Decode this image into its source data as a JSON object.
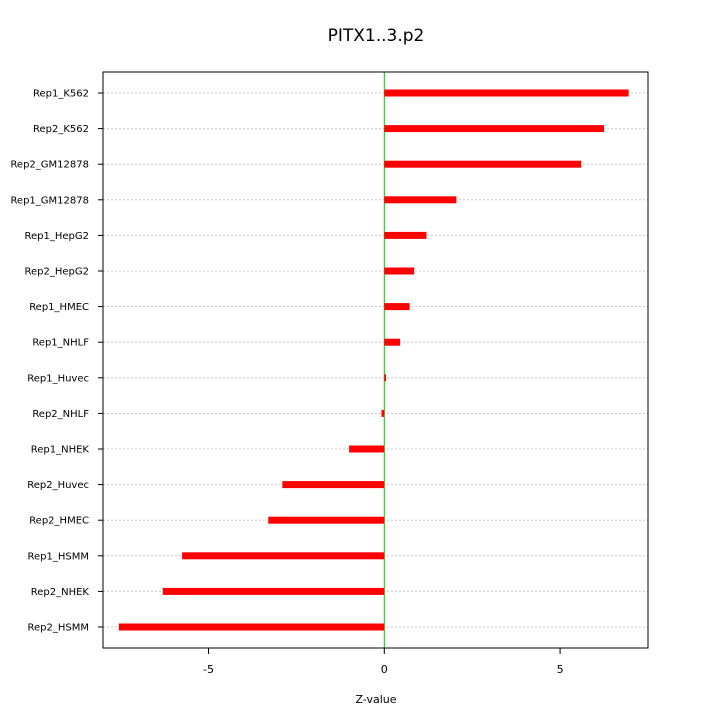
{
  "chart_data": {
    "type": "bar",
    "orientation": "horizontal",
    "title": "PITX1..3.p2",
    "xlabel": "Z-value",
    "ylabel": "",
    "xlim": [
      -8.0,
      7.5
    ],
    "xticks": [
      -5,
      0,
      5
    ],
    "xtick_labels": [
      "-5",
      "0",
      "5"
    ],
    "grid": true,
    "bar_color": "#ff0000",
    "zero_line_color": "#00cc00",
    "categories": [
      "Rep1_K562",
      "Rep2_K562",
      "Rep2_GM12878",
      "Rep1_GM12878",
      "Rep1_HepG2",
      "Rep2_HepG2",
      "Rep1_HMEC",
      "Rep1_NHLF",
      "Rep1_Huvec",
      "Rep2_NHLF",
      "Rep1_NHEK",
      "Rep2_Huvec",
      "Rep2_HMEC",
      "Rep1_HSMM",
      "Rep2_NHEK",
      "Rep2_HSMM"
    ],
    "values": [
      6.95,
      6.25,
      5.6,
      2.05,
      1.2,
      0.85,
      0.72,
      0.45,
      0.05,
      -0.08,
      -1.0,
      -2.9,
      -3.3,
      -5.75,
      -6.3,
      -7.55
    ]
  }
}
